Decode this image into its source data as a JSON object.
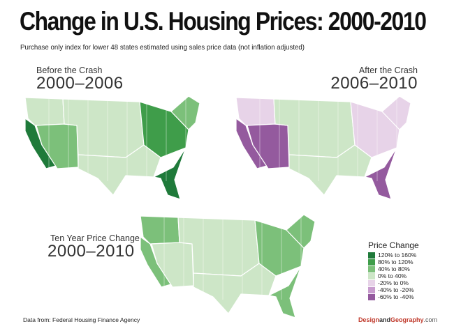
{
  "title": "Change in U.S. Housing Prices: 2000-2010",
  "subtitle": "Purchase only index for lower 48 states estimated using sales price data (not inflation adjusted)",
  "maps": {
    "before": {
      "label_small": "Before the Crash",
      "label_big": "2000–2006"
    },
    "after": {
      "label_small": "After the Crash",
      "label_big": "2006–2010"
    },
    "ten_year": {
      "label_small": "Ten Year Price Change",
      "label_big": "2000–2010"
    }
  },
  "legend": {
    "title": "Price Change",
    "items": [
      {
        "label": "120% to 160%",
        "color": "#1f7a3a"
      },
      {
        "label": "80% to 120%",
        "color": "#3f9d4a"
      },
      {
        "label": "40% to 80%",
        "color": "#7cc07a"
      },
      {
        "label": "0% to 40%",
        "color": "#cde6c7"
      },
      {
        "label": "-20% to 0%",
        "color": "#e7d3e8"
      },
      {
        "label": "-40% to -20%",
        "color": "#c89cce"
      },
      {
        "label": "-60% to -40%",
        "color": "#945a9e"
      }
    ]
  },
  "state_colors": {
    "before": {
      "west_coast": "#1f7a3a",
      "southwest": "#7cc07a",
      "north_west": "#cde6c7",
      "interior": "#cde6c7",
      "florida": "#1f7a3a",
      "mid_atlantic": "#3f9d4a",
      "northeast": "#7cc07a",
      "south_central": "#cde6c7"
    },
    "after": {
      "west_coast": "#945a9e",
      "southwest": "#945a9e",
      "north_west": "#e7d3e8",
      "interior": "#cde6c7",
      "florida": "#945a9e",
      "mid_atlantic": "#e7d3e8",
      "northeast": "#e7d3e8",
      "south_central": "#cde6c7"
    },
    "ten_year": {
      "west_coast": "#7cc07a",
      "southwest": "#cde6c7",
      "north_west": "#7cc07a",
      "interior": "#cde6c7",
      "florida": "#7cc07a",
      "mid_atlantic": "#7cc07a",
      "northeast": "#7cc07a",
      "south_central": "#cde6c7"
    }
  },
  "source": "Data from:  Federal Housing Finance Agency",
  "brand": {
    "part1": "Design",
    "part2": "and",
    "part3": "Geography",
    "part4": ".com"
  }
}
